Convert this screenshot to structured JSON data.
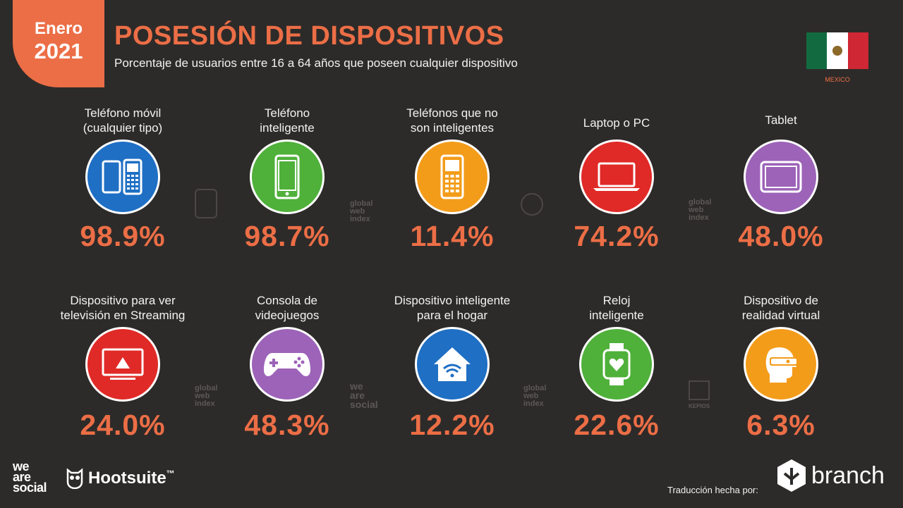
{
  "header": {
    "badge_month": "Enero",
    "badge_year": "2021",
    "title": "POSESIÓN DE DISPOSITIVOS",
    "subtitle": "Porcentaje de usuarios entre 16 a 64 años que poseen cualquier dispositivo",
    "country": "MEXICO"
  },
  "colors": {
    "accent": "#ec6e46",
    "background": "#2d2b29",
    "blue": "#1f6fc4",
    "green": "#4fb03a",
    "orange": "#f39c1a",
    "red": "#e02a27",
    "purple": "#9c63b8"
  },
  "devices": [
    {
      "label_1": "Teléfono móvil",
      "label_2": "(cualquier tipo)",
      "value": "98.9%",
      "icon": "phones-icon"
    },
    {
      "label_1": "Teléfono",
      "label_2": "inteligente",
      "value": "98.7%",
      "icon": "smartphone-icon"
    },
    {
      "label_1": "Teléfonos que no",
      "label_2": "son inteligentes",
      "value": "11.4%",
      "icon": "feature-phone-icon"
    },
    {
      "label_1": "Laptop o PC",
      "label_2": "",
      "value": "74.2%",
      "icon": "laptop-icon"
    },
    {
      "label_1": "Tablet",
      "label_2": "",
      "value": "48.0%",
      "icon": "tablet-icon"
    },
    {
      "label_1": "Dispositivo para ver",
      "label_2": "televisión en Streaming",
      "value": "24.0%",
      "icon": "streaming-tv-icon"
    },
    {
      "label_1": "Consola de",
      "label_2": "videojuegos",
      "value": "48.3%",
      "icon": "gamepad-icon"
    },
    {
      "label_1": "Dispositivo inteligente",
      "label_2": "para el hogar",
      "value": "12.2%",
      "icon": "smart-home-icon"
    },
    {
      "label_1": "Reloj",
      "label_2": "inteligente",
      "value": "22.6%",
      "icon": "smartwatch-icon"
    },
    {
      "label_1": "Dispositivo de",
      "label_2": "realidad virtual",
      "value": "6.3%",
      "icon": "vr-headset-icon"
    }
  ],
  "watermarks": {
    "gwi_1": "global",
    "gwi_2": "web",
    "gwi_3": "index",
    "was_1": "we",
    "was_2": "are",
    "was_3": "social",
    "kepios": "KEPIOS"
  },
  "footer": {
    "was_1": "we",
    "was_2": "are",
    "was_3": "social",
    "hootsuite": "Hootsuite",
    "tm": "™",
    "translation": "Traducción hecha por:",
    "branch": "branch"
  }
}
